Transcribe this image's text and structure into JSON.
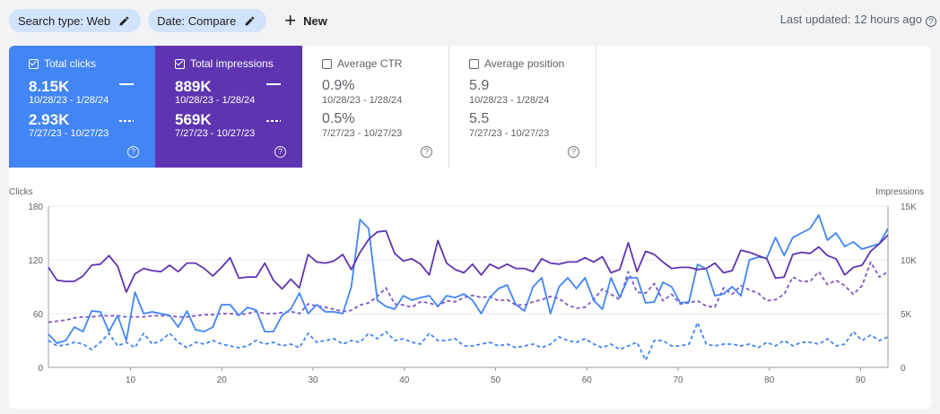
{
  "toolbar": {
    "chip_search": "Search type: Web",
    "chip_date": "Date: Compare",
    "new_label": "New",
    "last_updated": "Last updated: 12 hours ago"
  },
  "cards": [
    {
      "key": "clicks",
      "title": "Total clicks",
      "checked": true,
      "cur_value": "8.15K",
      "cur_range": "10/28/23 - 1/28/24",
      "prev_value": "2.93K",
      "prev_range": "7/27/23 - 10/27/23"
    },
    {
      "key": "impr",
      "title": "Total impressions",
      "checked": true,
      "cur_value": "889K",
      "cur_range": "10/28/23 - 1/28/24",
      "prev_value": "569K",
      "prev_range": "7/27/23 - 10/27/23"
    },
    {
      "key": "ctr",
      "title": "Average CTR",
      "checked": false,
      "cur_value": "0.9%",
      "cur_range": "10/28/23 - 1/28/24",
      "prev_value": "0.5%",
      "prev_range": "7/27/23 - 10/27/23"
    },
    {
      "key": "pos",
      "title": "Average position",
      "checked": false,
      "cur_value": "5.9",
      "cur_range": "10/28/23 - 1/28/24",
      "prev_value": "5.5",
      "prev_range": "7/27/23 - 10/27/23"
    }
  ],
  "colors": {
    "clicks": "#4285f4",
    "impressions": "#5e35b1",
    "clicks_light": "#8ab4f8",
    "impressions_light": "#7e57c2"
  },
  "chart_data": {
    "type": "line",
    "left_axis": {
      "label": "Clicks",
      "ticks": [
        0,
        60,
        120,
        180
      ],
      "ylim": [
        0,
        180
      ]
    },
    "right_axis": {
      "label": "Impressions",
      "ticks": [
        "0",
        "5K",
        "10K",
        "15K"
      ],
      "ylim": [
        0,
        15000
      ]
    },
    "x_ticks": [
      10,
      20,
      30,
      40,
      50,
      60,
      70,
      80,
      90
    ],
    "x_range": [
      1,
      93
    ],
    "series": [
      {
        "axis": "left",
        "style": "solid",
        "values": [
          37,
          27,
          30,
          45,
          40,
          63,
          62,
          40,
          58,
          30,
          84,
          60,
          62,
          60,
          58,
          45,
          63,
          42,
          40,
          45,
          70,
          70,
          58,
          67,
          64,
          40,
          40,
          58,
          65,
          83,
          60,
          70,
          62,
          62,
          60,
          90,
          165,
          155,
          75,
          68,
          65,
          80,
          75,
          78,
          80,
          68,
          80,
          78,
          82,
          75,
          60,
          78,
          88,
          92,
          70,
          63,
          90,
          100,
          60,
          90,
          100,
          88,
          100,
          75,
          65,
          100,
          78,
          100,
          100,
          72,
          73,
          95,
          90,
          72,
          73,
          115,
          110,
          80,
          82,
          90,
          80,
          120,
          123,
          122,
          145,
          125,
          145,
          150,
          155,
          170,
          142,
          150,
          135,
          140,
          132,
          135,
          138,
          155
        ]
      },
      {
        "axis": "left",
        "style": "dash",
        "values": [
          30,
          24,
          25,
          28,
          26,
          20,
          28,
          38,
          24,
          28,
          22,
          38,
          26,
          30,
          38,
          28,
          22,
          28,
          26,
          30,
          26,
          24,
          22,
          24,
          30,
          26,
          28,
          24,
          26,
          22,
          38,
          28,
          30,
          32,
          26,
          30,
          28,
          38,
          32,
          40,
          30,
          32,
          28,
          26,
          38,
          30,
          30,
          32,
          24,
          24,
          26,
          28,
          24,
          26,
          22,
          24,
          26,
          22,
          26,
          34,
          30,
          28,
          32,
          26,
          22,
          26,
          20,
          24,
          28,
          8,
          30,
          30,
          24,
          24,
          26,
          50,
          26,
          24,
          26,
          26,
          24,
          26,
          22,
          28,
          24,
          30,
          24,
          28,
          28,
          26,
          32,
          24,
          26,
          40,
          30,
          36,
          30,
          34
        ]
      },
      {
        "axis": "right",
        "style": "solid",
        "values": [
          9300,
          8100,
          8000,
          8000,
          8500,
          9500,
          9600,
          10400,
          9400,
          7000,
          8700,
          9200,
          9000,
          8900,
          9500,
          8900,
          9700,
          9700,
          9200,
          8500,
          9300,
          10200,
          8300,
          8400,
          8400,
          9700,
          8100,
          7300,
          8200,
          7400,
          10500,
          9800,
          9700,
          9900,
          10500,
          9100,
          10700,
          11900,
          12600,
          12700,
          10600,
          9900,
          10100,
          9600,
          8600,
          11800,
          9700,
          9100,
          8800,
          9600,
          8600,
          9600,
          9200,
          9600,
          9200,
          9200,
          8900,
          10100,
          9700,
          9600,
          9800,
          9800,
          10200,
          9800,
          10300,
          8800,
          9100,
          11600,
          8900,
          10800,
          10500,
          9800,
          9200,
          9300,
          9300,
          9100,
          9200,
          9700,
          8800,
          9000,
          10900,
          10700,
          10400,
          10100,
          8300,
          8400,
          10500,
          10700,
          10600,
          11200,
          10400,
          10100,
          8600,
          9300,
          9500,
          10800,
          11500,
          12300
        ]
      },
      {
        "axis": "right",
        "style": "dash",
        "values": [
          4200,
          4300,
          4400,
          4600,
          4700,
          4700,
          4800,
          4800,
          4800,
          4700,
          4700,
          4700,
          4800,
          4800,
          4800,
          4700,
          4700,
          4800,
          4900,
          4900,
          5000,
          5000,
          4900,
          5000,
          5200,
          5000,
          5000,
          5100,
          5200,
          5000,
          5900,
          5700,
          5600,
          5400,
          5200,
          5300,
          5800,
          6000,
          6600,
          7400,
          5900,
          5800,
          5600,
          6100,
          6000,
          5700,
          6200,
          6100,
          6500,
          6700,
          6500,
          6600,
          6200,
          6300,
          5800,
          5800,
          6100,
          6300,
          6600,
          6400,
          5800,
          5500,
          5600,
          6300,
          7300,
          6800,
          6300,
          8900,
          7000,
          6900,
          7800,
          6200,
          6800,
          5900,
          6000,
          6200,
          5700,
          5600,
          7400,
          6800,
          7600,
          7200,
          6900,
          6200,
          6300,
          6800,
          8400,
          8000,
          8000,
          8900,
          7700,
          8100,
          7600,
          6800,
          7600,
          9800,
          8400,
          8900
        ]
      }
    ]
  }
}
